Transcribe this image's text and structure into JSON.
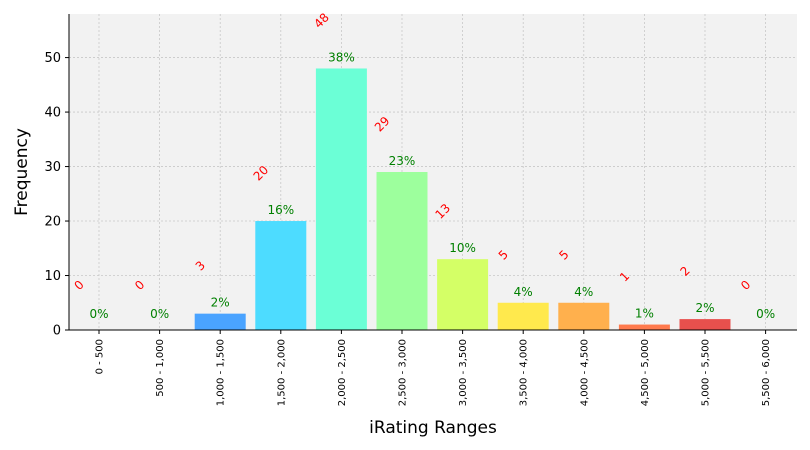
{
  "chart_data": {
    "type": "bar",
    "title": "",
    "xlabel": "iRating Ranges",
    "ylabel": "Frequency",
    "ylim": [
      0,
      58
    ],
    "yticks": [
      0,
      10,
      20,
      30,
      40,
      50
    ],
    "grid": true,
    "categories": [
      "0 - 500",
      "500 - 1,000",
      "1,000 - 1,500",
      "1,500 - 2,000",
      "2,000 - 2,500",
      "2,500 - 3,000",
      "3,000 - 3,500",
      "3,500 - 4,000",
      "4,000 - 4,500",
      "4,500 - 5,000",
      "5,000 - 5,500",
      "5,500 - 6,000"
    ],
    "values": [
      0,
      0,
      3,
      20,
      48,
      29,
      13,
      5,
      5,
      1,
      2,
      0
    ],
    "percent_labels": [
      "0%",
      "0%",
      "2%",
      "16%",
      "38%",
      "23%",
      "10%",
      "4%",
      "4%",
      "1%",
      "2%",
      "0%"
    ],
    "colors": [
      "#4d96ff",
      "#4d96ff",
      "#4aa3ff",
      "#4ddcff",
      "#6bffd6",
      "#9dff9d",
      "#d4ff66",
      "#ffe94d",
      "#ffb04d",
      "#ff7a4d",
      "#e8504d",
      "#e8504d"
    ]
  }
}
